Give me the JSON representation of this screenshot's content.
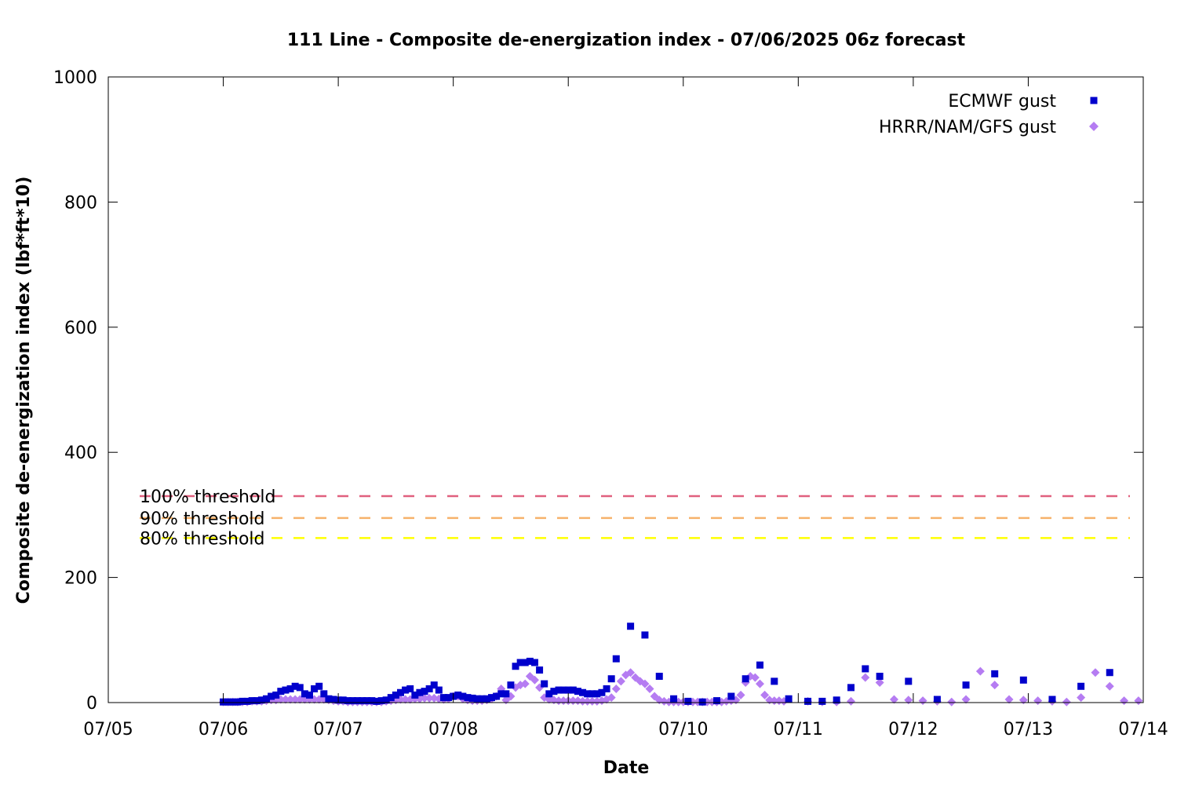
{
  "chart_data": {
    "type": "scatter",
    "title": "111 Line - Composite de-energization index - 07/06/2025 06z forecast",
    "xlabel": "Date",
    "ylabel": "Composite de-energization index (lbf*ft*10)",
    "ylim": [
      0,
      1000
    ],
    "yticks": [
      0,
      200,
      400,
      600,
      800,
      1000
    ],
    "xlim_days": [
      0,
      9
    ],
    "xticks": [
      "07/05",
      "07/06",
      "07/07",
      "07/08",
      "07/09",
      "07/10",
      "07/11",
      "07/12",
      "07/13",
      "07/14"
    ],
    "grid": false,
    "legend_position": "top-right",
    "thresholds": [
      {
        "label": "100% threshold",
        "value": 330,
        "color": "#e0607e"
      },
      {
        "label": "90% threshold",
        "value": 295,
        "color": "#f6b26b"
      },
      {
        "label": "80% threshold",
        "value": 263,
        "color": "#ffff00"
      }
    ],
    "series": [
      {
        "name": "ECMWF gust",
        "marker": "square",
        "color": "#0000cc",
        "points": [
          [
            "07/06 00z",
            1
          ],
          [
            "07/06 01z",
            1
          ],
          [
            "07/06 02z",
            1
          ],
          [
            "07/06 03z",
            1
          ],
          [
            "07/06 04z",
            2
          ],
          [
            "07/06 05z",
            2
          ],
          [
            "07/06 06z",
            3
          ],
          [
            "07/06 07z",
            3
          ],
          [
            "07/06 08z",
            4
          ],
          [
            "07/06 09z",
            6
          ],
          [
            "07/06 10z",
            10
          ],
          [
            "07/06 11z",
            12
          ],
          [
            "07/06 12z",
            18
          ],
          [
            "07/06 13z",
            20
          ],
          [
            "07/06 14z",
            22
          ],
          [
            "07/06 15z",
            26
          ],
          [
            "07/06 16z",
            24
          ],
          [
            "07/06 17z",
            14
          ],
          [
            "07/06 18z",
            12
          ],
          [
            "07/06 19z",
            22
          ],
          [
            "07/06 20z",
            26
          ],
          [
            "07/06 21z",
            14
          ],
          [
            "07/06 22z",
            6
          ],
          [
            "07/06 23z",
            5
          ],
          [
            "07/07 00z",
            4
          ],
          [
            "07/07 01z",
            4
          ],
          [
            "07/07 02z",
            3
          ],
          [
            "07/07 03z",
            3
          ],
          [
            "07/07 04z",
            3
          ],
          [
            "07/07 05z",
            3
          ],
          [
            "07/07 06z",
            3
          ],
          [
            "07/07 07z",
            3
          ],
          [
            "07/07 08z",
            2
          ],
          [
            "07/07 09z",
            3
          ],
          [
            "07/07 10z",
            4
          ],
          [
            "07/07 11z",
            8
          ],
          [
            "07/07 12z",
            12
          ],
          [
            "07/07 13z",
            16
          ],
          [
            "07/07 14z",
            20
          ],
          [
            "07/07 15z",
            22
          ],
          [
            "07/07 16z",
            12
          ],
          [
            "07/07 17z",
            16
          ],
          [
            "07/07 18z",
            18
          ],
          [
            "07/07 19z",
            22
          ],
          [
            "07/07 20z",
            28
          ],
          [
            "07/07 21z",
            20
          ],
          [
            "07/07 22z",
            8
          ],
          [
            "07/07 23z",
            8
          ],
          [
            "07/08 00z",
            10
          ],
          [
            "07/08 01z",
            12
          ],
          [
            "07/08 02z",
            10
          ],
          [
            "07/08 03z",
            8
          ],
          [
            "07/08 04z",
            7
          ],
          [
            "07/08 05z",
            6
          ],
          [
            "07/08 06z",
            6
          ],
          [
            "07/08 07z",
            6
          ],
          [
            "07/08 08z",
            8
          ],
          [
            "07/08 09z",
            10
          ],
          [
            "07/08 10z",
            14
          ],
          [
            "07/08 11z",
            14
          ],
          [
            "07/08 12z",
            28
          ],
          [
            "07/08 13z",
            58
          ],
          [
            "07/08 14z",
            64
          ],
          [
            "07/08 15z",
            64
          ],
          [
            "07/08 16z",
            66
          ],
          [
            "07/08 17z",
            64
          ],
          [
            "07/08 18z",
            52
          ],
          [
            "07/08 19z",
            30
          ],
          [
            "07/08 20z",
            14
          ],
          [
            "07/08 21z",
            18
          ],
          [
            "07/08 22z",
            20
          ],
          [
            "07/08 23z",
            20
          ],
          [
            "07/09 00z",
            20
          ],
          [
            "07/09 01z",
            20
          ],
          [
            "07/09 02z",
            18
          ],
          [
            "07/09 03z",
            16
          ],
          [
            "07/09 04z",
            14
          ],
          [
            "07/09 05z",
            14
          ],
          [
            "07/09 06z",
            14
          ],
          [
            "07/09 07z",
            16
          ],
          [
            "07/09 08z",
            22
          ],
          [
            "07/09 09z",
            38
          ],
          [
            "07/09 10z",
            70
          ],
          [
            "07/09 13z",
            122
          ],
          [
            "07/09 16z",
            108
          ],
          [
            "07/09 19z",
            42
          ],
          [
            "07/09 22z",
            6
          ],
          [
            "07/10 01z",
            2
          ],
          [
            "07/10 04z",
            1
          ],
          [
            "07/10 07z",
            3
          ],
          [
            "07/10 10z",
            10
          ],
          [
            "07/10 13z",
            38
          ],
          [
            "07/10 16z",
            60
          ],
          [
            "07/10 19z",
            34
          ],
          [
            "07/10 22z",
            6
          ],
          [
            "07/11 02z",
            2
          ],
          [
            "07/11 05z",
            2
          ],
          [
            "07/11 08z",
            4
          ],
          [
            "07/11 11z",
            24
          ],
          [
            "07/11 14z",
            54
          ],
          [
            "07/11 17z",
            42
          ],
          [
            "07/11 23z",
            34
          ],
          [
            "07/12 05z",
            5
          ],
          [
            "07/12 11z",
            28
          ],
          [
            "07/12 17z",
            46
          ],
          [
            "07/12 23z",
            36
          ],
          [
            "07/13 05z",
            5
          ],
          [
            "07/13 11z",
            26
          ],
          [
            "07/13 17z",
            48
          ]
        ]
      },
      {
        "name": "HRRR/NAM/GFS gust",
        "marker": "diamond",
        "color": "#b57cf2",
        "points": [
          [
            "07/06 00z",
            1
          ],
          [
            "07/06 01z",
            1
          ],
          [
            "07/06 02z",
            1
          ],
          [
            "07/06 03z",
            1
          ],
          [
            "07/06 04z",
            1
          ],
          [
            "07/06 05z",
            1
          ],
          [
            "07/06 06z",
            2
          ],
          [
            "07/06 07z",
            2
          ],
          [
            "07/06 08z",
            2
          ],
          [
            "07/06 09z",
            3
          ],
          [
            "07/06 10z",
            4
          ],
          [
            "07/06 11z",
            4
          ],
          [
            "07/06 12z",
            5
          ],
          [
            "07/06 13z",
            5
          ],
          [
            "07/06 14z",
            5
          ],
          [
            "07/06 15z",
            5
          ],
          [
            "07/06 16z",
            5
          ],
          [
            "07/06 17z",
            5
          ],
          [
            "07/06 18z",
            5
          ],
          [
            "07/06 19z",
            5
          ],
          [
            "07/06 20z",
            5
          ],
          [
            "07/06 21z",
            5
          ],
          [
            "07/06 22z",
            4
          ],
          [
            "07/06 23z",
            3
          ],
          [
            "07/07 00z",
            2
          ],
          [
            "07/07 01z",
            2
          ],
          [
            "07/07 02z",
            1
          ],
          [
            "07/07 03z",
            1
          ],
          [
            "07/07 04z",
            1
          ],
          [
            "07/07 05z",
            1
          ],
          [
            "07/07 06z",
            1
          ],
          [
            "07/07 07z",
            1
          ],
          [
            "07/07 08z",
            1
          ],
          [
            "07/07 09z",
            1
          ],
          [
            "07/07 10z",
            2
          ],
          [
            "07/07 11z",
            3
          ],
          [
            "07/07 12z",
            4
          ],
          [
            "07/07 13z",
            5
          ],
          [
            "07/07 14z",
            5
          ],
          [
            "07/07 15z",
            5
          ],
          [
            "07/07 16z",
            6
          ],
          [
            "07/07 17z",
            6
          ],
          [
            "07/07 18z",
            7
          ],
          [
            "07/07 19z",
            7
          ],
          [
            "07/07 20z",
            7
          ],
          [
            "07/07 21z",
            6
          ],
          [
            "07/07 22z",
            5
          ],
          [
            "07/07 23z",
            6
          ],
          [
            "07/08 00z",
            10
          ],
          [
            "07/08 01z",
            10
          ],
          [
            "07/08 02z",
            6
          ],
          [
            "07/08 03z",
            4
          ],
          [
            "07/08 04z",
            3
          ],
          [
            "07/08 05z",
            3
          ],
          [
            "07/08 06z",
            3
          ],
          [
            "07/08 07z",
            4
          ],
          [
            "07/08 08z",
            6
          ],
          [
            "07/08 09z",
            10
          ],
          [
            "07/08 10z",
            22
          ],
          [
            "07/08 11z",
            4
          ],
          [
            "07/08 12z",
            10
          ],
          [
            "07/08 13z",
            24
          ],
          [
            "07/08 14z",
            28
          ],
          [
            "07/08 15z",
            30
          ],
          [
            "07/08 16z",
            42
          ],
          [
            "07/08 17z",
            36
          ],
          [
            "07/08 18z",
            24
          ],
          [
            "07/08 19z",
            8
          ],
          [
            "07/08 20z",
            5
          ],
          [
            "07/08 21z",
            4
          ],
          [
            "07/08 22z",
            3
          ],
          [
            "07/08 23z",
            3
          ],
          [
            "07/09 00z",
            3
          ],
          [
            "07/09 01z",
            3
          ],
          [
            "07/09 02z",
            3
          ],
          [
            "07/09 03z",
            2
          ],
          [
            "07/09 04z",
            2
          ],
          [
            "07/09 05z",
            2
          ],
          [
            "07/09 06z",
            2
          ],
          [
            "07/09 07z",
            3
          ],
          [
            "07/09 08z",
            5
          ],
          [
            "07/09 09z",
            8
          ],
          [
            "07/09 10z",
            22
          ],
          [
            "07/09 11z",
            34
          ],
          [
            "07/09 12z",
            44
          ],
          [
            "07/09 13z",
            48
          ],
          [
            "07/09 14z",
            40
          ],
          [
            "07/09 15z",
            34
          ],
          [
            "07/09 16z",
            30
          ],
          [
            "07/09 17z",
            22
          ],
          [
            "07/09 18z",
            10
          ],
          [
            "07/09 19z",
            4
          ],
          [
            "07/09 20z",
            2
          ],
          [
            "07/09 21z",
            1
          ],
          [
            "07/09 22z",
            1
          ],
          [
            "07/09 23z",
            1
          ],
          [
            "07/10 00z",
            1
          ],
          [
            "07/10 01z",
            1
          ],
          [
            "07/10 02z",
            1
          ],
          [
            "07/10 03z",
            1
          ],
          [
            "07/10 04z",
            1
          ],
          [
            "07/10 05z",
            1
          ],
          [
            "07/10 06z",
            1
          ],
          [
            "07/10 07z",
            1
          ],
          [
            "07/10 08z",
            1
          ],
          [
            "07/10 09z",
            2
          ],
          [
            "07/10 10z",
            3
          ],
          [
            "07/10 11z",
            4
          ],
          [
            "07/10 12z",
            12
          ],
          [
            "07/10 13z",
            32
          ],
          [
            "07/10 14z",
            42
          ],
          [
            "07/10 15z",
            40
          ],
          [
            "07/10 16z",
            30
          ],
          [
            "07/10 17z",
            12
          ],
          [
            "07/10 18z",
            4
          ],
          [
            "07/10 19z",
            3
          ],
          [
            "07/10 20z",
            3
          ],
          [
            "07/10 21z",
            2
          ],
          [
            "07/11 02z",
            2
          ],
          [
            "07/11 05z",
            1
          ],
          [
            "07/11 08z",
            1
          ],
          [
            "07/11 11z",
            2
          ],
          [
            "07/11 14z",
            40
          ],
          [
            "07/11 17z",
            32
          ],
          [
            "07/11 20z",
            5
          ],
          [
            "07/11 23z",
            4
          ],
          [
            "07/12 02z",
            3
          ],
          [
            "07/12 05z",
            2
          ],
          [
            "07/12 08z",
            1
          ],
          [
            "07/12 11z",
            5
          ],
          [
            "07/12 14z",
            50
          ],
          [
            "07/12 17z",
            28
          ],
          [
            "07/12 20z",
            5
          ],
          [
            "07/12 23z",
            4
          ],
          [
            "07/13 02z",
            3
          ],
          [
            "07/13 05z",
            2
          ],
          [
            "07/13 08z",
            1
          ],
          [
            "07/13 11z",
            8
          ],
          [
            "07/13 14z",
            48
          ],
          [
            "07/13 17z",
            26
          ],
          [
            "07/13 20z",
            3
          ],
          [
            "07/13 23z",
            3
          ]
        ]
      }
    ]
  }
}
